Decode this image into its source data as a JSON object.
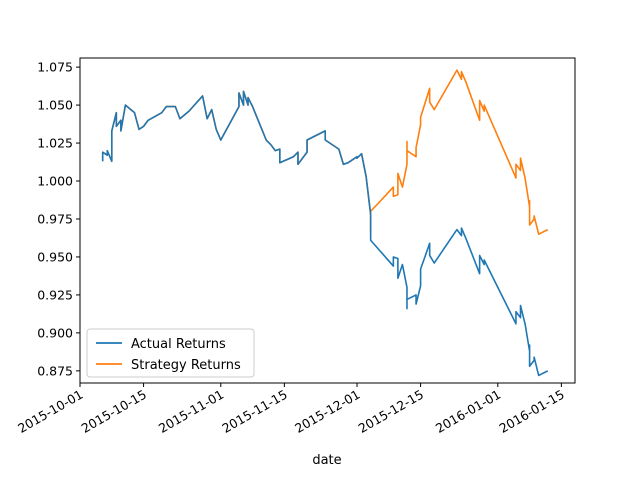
{
  "chart_data": {
    "type": "line",
    "title": "",
    "xlabel": "date",
    "ylabel": "",
    "x_axis_type": "date",
    "xlim": [
      "2015-10-01",
      "2016-01-18"
    ],
    "ylim": [
      0.867,
      1.081
    ],
    "grid": false,
    "legend_position": "lower-left",
    "x_ticks": [
      {
        "date": "2015-10-01",
        "label": "2015-10-01"
      },
      {
        "date": "2015-10-15",
        "label": "2015-10-15"
      },
      {
        "date": "2015-11-01",
        "label": "2015-11-01"
      },
      {
        "date": "2015-11-15",
        "label": "2015-11-15"
      },
      {
        "date": "2015-12-01",
        "label": "2015-12-01"
      },
      {
        "date": "2015-12-15",
        "label": "2015-12-15"
      },
      {
        "date": "2016-01-01",
        "label": "2016-01-01"
      },
      {
        "date": "2016-01-15",
        "label": "2016-01-15"
      }
    ],
    "y_ticks": [
      {
        "value": 0.875,
        "label": "0.875"
      },
      {
        "value": 0.9,
        "label": "0.900"
      },
      {
        "value": 0.925,
        "label": "0.925"
      },
      {
        "value": 0.95,
        "label": "0.950"
      },
      {
        "value": 0.975,
        "label": "0.975"
      },
      {
        "value": 1.0,
        "label": "1.000"
      },
      {
        "value": 1.025,
        "label": "1.025"
      },
      {
        "value": 1.05,
        "label": "1.050"
      },
      {
        "value": 1.075,
        "label": "1.075"
      }
    ],
    "common_path": [
      [
        "2015-10-06",
        1.013
      ],
      [
        "2015-10-06",
        1.019
      ],
      [
        "2015-10-07",
        1.017
      ],
      [
        "2015-10-07",
        1.02
      ],
      [
        "2015-10-08",
        1.013
      ],
      [
        "2015-10-08",
        1.033
      ],
      [
        "2015-10-09",
        1.045
      ],
      [
        "2015-10-09",
        1.036
      ],
      [
        "2015-10-10",
        1.04
      ],
      [
        "2015-10-10",
        1.033
      ],
      [
        "2015-10-11",
        1.05
      ],
      [
        "2015-10-13",
        1.045
      ],
      [
        "2015-10-14",
        1.034
      ],
      [
        "2015-10-15",
        1.036
      ],
      [
        "2015-10-16",
        1.04
      ],
      [
        "2015-10-19",
        1.045
      ],
      [
        "2015-10-20",
        1.049
      ],
      [
        "2015-10-22",
        1.049
      ],
      [
        "2015-10-23",
        1.041
      ],
      [
        "2015-10-25",
        1.046
      ],
      [
        "2015-10-28",
        1.056
      ],
      [
        "2015-10-29",
        1.041
      ],
      [
        "2015-10-30",
        1.047
      ],
      [
        "2015-10-31",
        1.034
      ],
      [
        "2015-11-01",
        1.027
      ],
      [
        "2015-11-05",
        1.049
      ],
      [
        "2015-11-05",
        1.058
      ],
      [
        "2015-11-06",
        1.05
      ],
      [
        "2015-11-06",
        1.059
      ],
      [
        "2015-11-07",
        1.05
      ],
      [
        "2015-11-07",
        1.055
      ],
      [
        "2015-11-08",
        1.049
      ],
      [
        "2015-11-11",
        1.027
      ],
      [
        "2015-11-12",
        1.024
      ],
      [
        "2015-11-13",
        1.02
      ],
      [
        "2015-11-14",
        1.021
      ],
      [
        "2015-11-14",
        1.012
      ],
      [
        "2015-11-17",
        1.016
      ],
      [
        "2015-11-18",
        1.019
      ],
      [
        "2015-11-18",
        1.011
      ],
      [
        "2015-11-20",
        1.019
      ],
      [
        "2015-11-20",
        1.027
      ],
      [
        "2015-11-24",
        1.033
      ],
      [
        "2015-11-24",
        1.027
      ],
      [
        "2015-11-27",
        1.021
      ],
      [
        "2015-11-28",
        1.011
      ],
      [
        "2015-11-29",
        1.012
      ],
      [
        "2015-12-01",
        1.016
      ],
      [
        "2015-12-01",
        1.015
      ],
      [
        "2015-12-02",
        1.018
      ],
      [
        "2015-12-03",
        1.003
      ],
      [
        "2015-12-04",
        0.978
      ],
      [
        "2015-12-04",
        0.966
      ]
    ],
    "series": [
      {
        "name": "Actual Returns",
        "color": "#1f77b4",
        "points": [
          [
            "2015-12-04",
            0.961
          ],
          [
            "2015-12-09",
            0.944
          ],
          [
            "2015-12-09",
            0.95
          ],
          [
            "2015-12-10",
            0.949
          ],
          [
            "2015-12-10",
            0.936
          ],
          [
            "2015-12-11",
            0.945
          ],
          [
            "2015-12-12",
            0.93
          ],
          [
            "2015-12-12",
            0.916
          ],
          [
            "2015-12-12",
            0.922
          ],
          [
            "2015-12-14",
            0.925
          ],
          [
            "2015-12-14",
            0.919
          ],
          [
            "2015-12-15",
            0.931
          ],
          [
            "2015-12-15",
            0.942
          ],
          [
            "2015-12-17",
            0.959
          ],
          [
            "2015-12-17",
            0.951
          ],
          [
            "2015-12-18",
            0.946
          ],
          [
            "2015-12-23",
            0.968
          ],
          [
            "2015-12-24",
            0.964
          ],
          [
            "2015-12-24",
            0.969
          ],
          [
            "2015-12-25",
            0.962
          ],
          [
            "2015-12-28",
            0.939
          ],
          [
            "2015-12-28",
            0.951
          ],
          [
            "2015-12-29",
            0.945
          ],
          [
            "2015-12-29",
            0.948
          ],
          [
            "2016-01-05",
            0.906
          ],
          [
            "2016-01-05",
            0.914
          ],
          [
            "2016-01-06",
            0.91
          ],
          [
            "2016-01-06",
            0.918
          ],
          [
            "2016-01-07",
            0.906
          ],
          [
            "2016-01-08",
            0.888
          ],
          [
            "2016-01-08",
            0.892
          ],
          [
            "2016-01-08",
            0.878
          ],
          [
            "2016-01-09",
            0.882
          ],
          [
            "2016-01-09",
            0.884
          ],
          [
            "2016-01-10",
            0.872
          ],
          [
            "2016-01-12",
            0.875
          ]
        ]
      },
      {
        "name": "Strategy Returns",
        "color": "#ff7f0e",
        "points": [
          [
            "2015-12-04",
            0.98
          ],
          [
            "2015-12-09",
            0.996
          ],
          [
            "2015-12-09",
            0.99
          ],
          [
            "2015-12-10",
            0.991
          ],
          [
            "2015-12-10",
            1.005
          ],
          [
            "2015-12-11",
            0.996
          ],
          [
            "2015-12-12",
            1.011
          ],
          [
            "2015-12-12",
            1.026
          ],
          [
            "2015-12-12",
            1.02
          ],
          [
            "2015-12-14",
            1.016
          ],
          [
            "2015-12-14",
            1.022
          ],
          [
            "2015-12-15",
            1.037
          ],
          [
            "2015-12-15",
            1.042
          ],
          [
            "2015-12-17",
            1.061
          ],
          [
            "2015-12-17",
            1.052
          ],
          [
            "2015-12-18",
            1.047
          ],
          [
            "2015-12-23",
            1.073
          ],
          [
            "2015-12-24",
            1.067
          ],
          [
            "2015-12-24",
            1.072
          ],
          [
            "2015-12-25",
            1.065
          ],
          [
            "2015-12-28",
            1.04
          ],
          [
            "2015-12-28",
            1.053
          ],
          [
            "2015-12-29",
            1.046
          ],
          [
            "2015-12-29",
            1.05
          ],
          [
            "2016-01-05",
            1.002
          ],
          [
            "2016-01-05",
            1.011
          ],
          [
            "2016-01-06",
            1.007
          ],
          [
            "2016-01-06",
            1.015
          ],
          [
            "2016-01-07",
            1.002
          ],
          [
            "2016-01-08",
            0.983
          ],
          [
            "2016-01-08",
            0.987
          ],
          [
            "2016-01-08",
            0.971
          ],
          [
            "2016-01-09",
            0.975
          ],
          [
            "2016-01-09",
            0.977
          ],
          [
            "2016-01-10",
            0.965
          ],
          [
            "2016-01-12",
            0.968
          ]
        ]
      }
    ]
  }
}
